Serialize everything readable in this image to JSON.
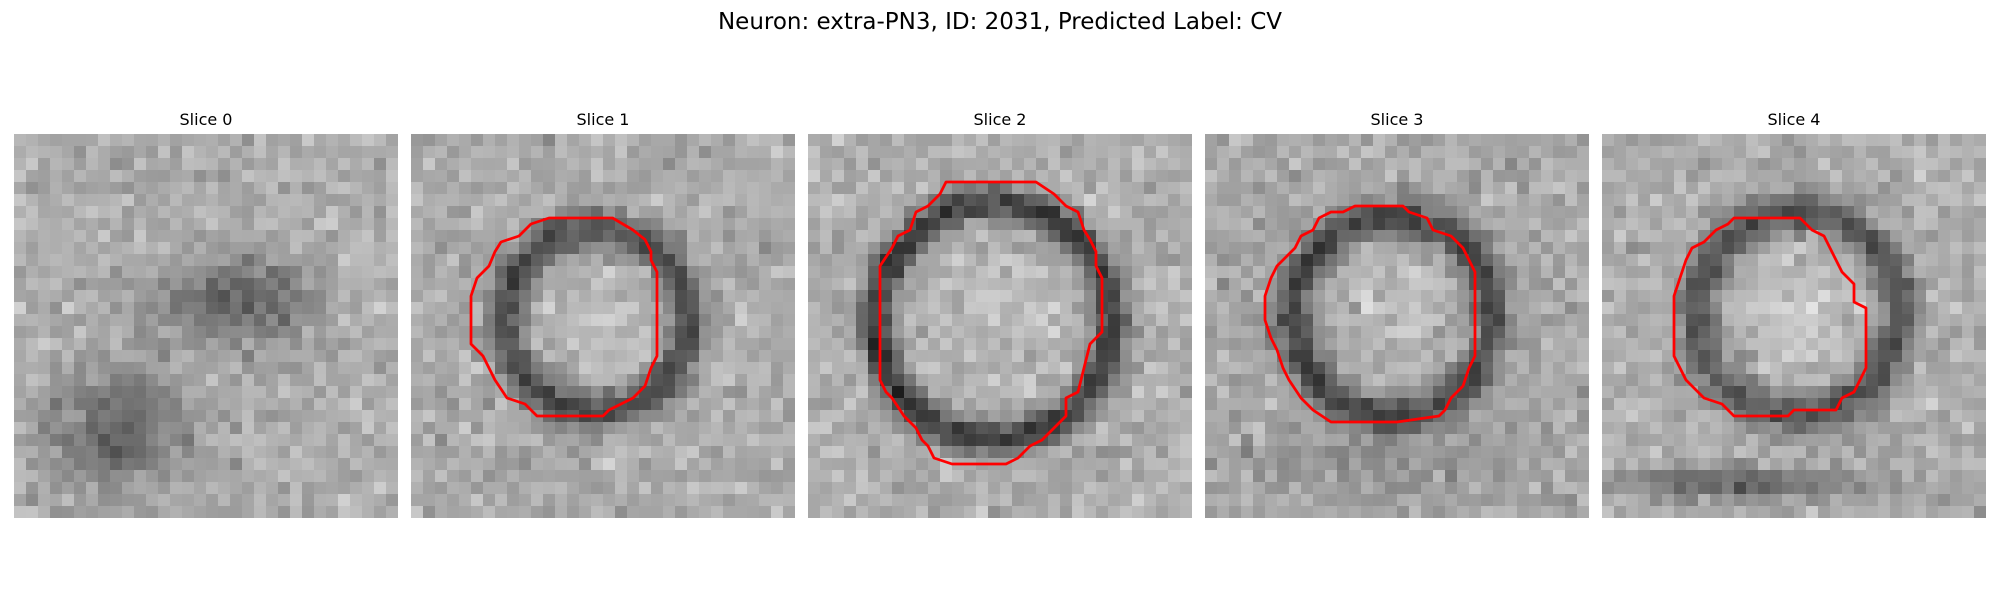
{
  "figure": {
    "title": "Neuron: extra-PN3, ID: 2031, Predicted Label: CV"
  },
  "slices": [
    {
      "title": "Slice 0",
      "has_contour": false
    },
    {
      "title": "Slice 1",
      "has_contour": true
    },
    {
      "title": "Slice 2",
      "has_contour": true
    },
    {
      "title": "Slice 3",
      "has_contour": true
    },
    {
      "title": "Slice 4",
      "has_contour": true
    }
  ],
  "colors": {
    "contour": "#ff0000",
    "background": "#ffffff"
  },
  "image": {
    "colormap": "grayscale",
    "grid_pixels": "32x32"
  }
}
